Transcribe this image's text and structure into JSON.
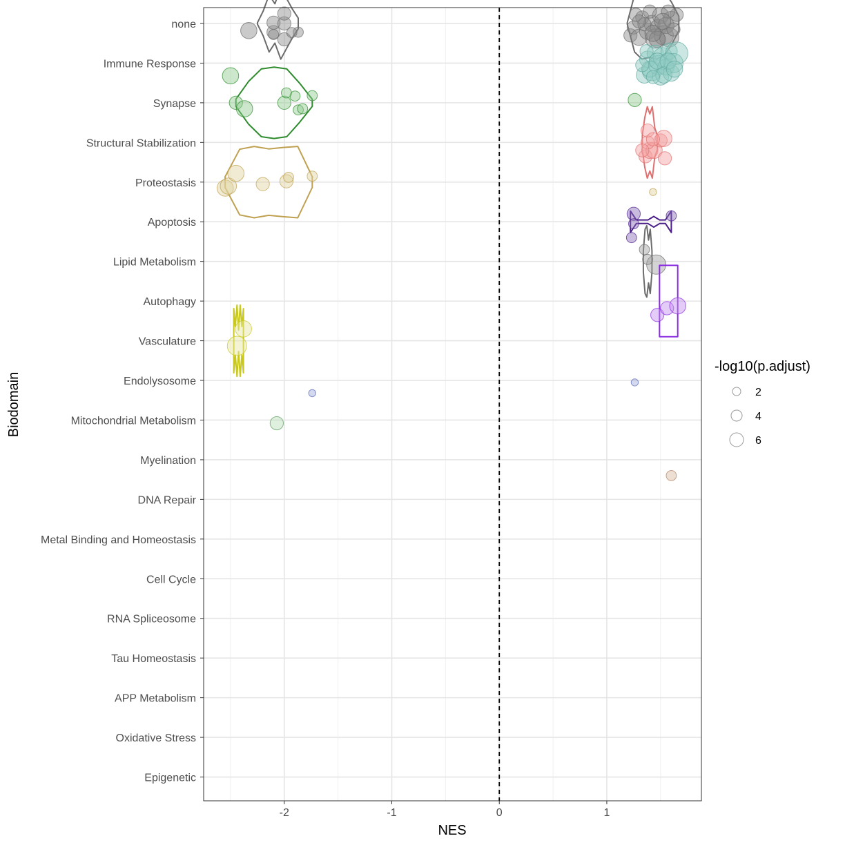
{
  "chart_data": {
    "type": "violin",
    "xlabel": "NES",
    "ylabel": "Biodomain",
    "xlim": [
      -2.75,
      1.88
    ],
    "xticks": [
      -2,
      -1,
      0,
      1
    ],
    "xtick_labels": [
      "-2",
      "-1",
      "0",
      "1"
    ],
    "reference_line_x": 0,
    "grid": true,
    "legend": {
      "title": "-log10(p.adjust)",
      "position": "right",
      "sizes": [
        2,
        4,
        6
      ],
      "labels": [
        "2",
        "4",
        "6"
      ]
    },
    "categories": [
      "none",
      "Immune Response",
      "Synapse",
      "Structural Stabilization",
      "Proteostasis",
      "Apoptosis",
      "Lipid Metabolism",
      "Autophagy",
      "Vasculature",
      "Endolysosome",
      "Mitochondrial Metabolism",
      "Myelination",
      "DNA Repair",
      "Metal Binding and Homeostasis",
      "Cell Cycle",
      "RNA Spliceosome",
      "Tau Homeostasis",
      "APP Metabolism",
      "Oxidative Stress",
      "Epigenetic"
    ],
    "groups": [
      {
        "category": "none",
        "color": "#6b6b6b",
        "fill": "#8a8a8a",
        "violins": [
          {
            "min": -2.25,
            "max": -1.87,
            "widths": [
              0.02,
              0.35,
              0.8,
              0.55,
              1.0,
              0.7,
              0.4,
              0.15
            ]
          },
          {
            "min": 1.19,
            "max": 1.67,
            "widths": [
              0.02,
              0.8,
              1.0,
              0.95,
              1.0,
              0.9,
              0.6,
              0.2
            ]
          }
        ],
        "points": [
          [
            -2.33,
            0.18,
            4
          ],
          [
            -2.1,
            0.22,
            3
          ],
          [
            -2.0,
            0.4,
            3
          ],
          [
            -1.87,
            0.22,
            2
          ],
          [
            -1.93,
            0.23,
            2
          ],
          [
            -2.1,
            -0.02,
            3
          ],
          [
            -2.0,
            0.0,
            3
          ],
          [
            -2.0,
            -0.25,
            3
          ],
          [
            -2.1,
            0.28,
            2
          ],
          [
            1.22,
            0.3,
            3
          ],
          [
            1.25,
            0.1,
            3
          ],
          [
            1.3,
            0.35,
            4
          ],
          [
            1.33,
            -0.15,
            3
          ],
          [
            1.38,
            0.2,
            4
          ],
          [
            1.42,
            0.0,
            4
          ],
          [
            1.45,
            0.38,
            5
          ],
          [
            1.48,
            0.1,
            4
          ],
          [
            1.5,
            -0.2,
            4
          ],
          [
            1.53,
            0.3,
            5
          ],
          [
            1.55,
            0.05,
            4
          ],
          [
            1.58,
            0.35,
            5
          ],
          [
            1.6,
            -0.1,
            4
          ],
          [
            1.62,
            0.15,
            3
          ],
          [
            1.65,
            -0.22,
            3
          ],
          [
            1.27,
            -0.22,
            3
          ],
          [
            1.35,
            0.02,
            3
          ],
          [
            1.4,
            -0.3,
            3
          ],
          [
            1.47,
            0.4,
            4
          ],
          [
            1.57,
            -0.3,
            3
          ],
          [
            1.3,
            -0.05,
            3
          ],
          [
            1.43,
            0.25,
            4
          ],
          [
            1.52,
            -0.05,
            4
          ]
        ]
      },
      {
        "category": "Immune Response",
        "color": "#5fa8a0",
        "fill": "#8ec9c2",
        "violins": [],
        "points": [
          [
            1.35,
            0.3,
            4
          ],
          [
            1.38,
            -0.1,
            4
          ],
          [
            1.42,
            0.2,
            5
          ],
          [
            1.45,
            -0.25,
            4
          ],
          [
            1.48,
            0.05,
            5
          ],
          [
            1.5,
            0.35,
            4
          ],
          [
            1.52,
            -0.15,
            5
          ],
          [
            1.55,
            0.1,
            4
          ],
          [
            1.58,
            -0.3,
            4
          ],
          [
            1.6,
            0.25,
            4
          ],
          [
            1.62,
            0.0,
            5
          ],
          [
            1.65,
            -0.25,
            6
          ],
          [
            1.4,
            0.15,
            4
          ],
          [
            1.47,
            -0.05,
            4
          ],
          [
            1.53,
            0.3,
            4
          ],
          [
            1.37,
            -0.3,
            3
          ],
          [
            1.43,
            0.35,
            3
          ],
          [
            1.57,
            -0.05,
            4
          ],
          [
            1.33,
            0.05,
            3
          ],
          [
            1.63,
            0.15,
            4
          ]
        ]
      },
      {
        "category": "Synapse",
        "color": "#2e8b2e",
        "fill": "#8fc98f",
        "violins": [
          {
            "min": -2.45,
            "max": -1.74,
            "widths": [
              0.1,
              0.6,
              0.95,
              1.0,
              0.95,
              0.55,
              0.1
            ]
          }
        ],
        "points": [
          [
            -2.45,
            0.0,
            3
          ],
          [
            -2.37,
            0.15,
            4
          ],
          [
            -2.0,
            0.0,
            3
          ],
          [
            -1.87,
            0.18,
            2
          ],
          [
            -1.83,
            0.15,
            2
          ],
          [
            -1.9,
            -0.17,
            2
          ],
          [
            -1.98,
            -0.25,
            2
          ],
          [
            -1.74,
            -0.18,
            2
          ],
          [
            -2.5,
            -0.68,
            4
          ],
          [
            1.26,
            -0.07,
            3
          ]
        ]
      },
      {
        "category": "Structural Stabilization",
        "color": "#e07070",
        "fill": "#f5a0a0",
        "violins": [
          {
            "min": 1.33,
            "max": 1.47,
            "widths": [
              0.2,
              0.7,
              1.0,
              0.8,
              1.0,
              0.4,
              0.2
            ]
          }
        ],
        "points": [
          [
            1.36,
            0.35,
            3
          ],
          [
            1.4,
            0.2,
            4
          ],
          [
            1.44,
            0.2,
            4
          ],
          [
            1.38,
            0.0,
            3
          ],
          [
            1.5,
            -0.05,
            3
          ],
          [
            1.54,
            0.4,
            3
          ],
          [
            1.53,
            -0.1,
            4
          ],
          [
            1.38,
            -0.3,
            3
          ],
          [
            1.43,
            -0.08,
            3
          ],
          [
            1.33,
            0.2,
            3
          ]
        ]
      },
      {
        "category": "Proteostasis",
        "color": "#bfa050",
        "fill": "#e0d3a0",
        "violins": [
          {
            "min": -2.55,
            "max": -1.74,
            "widths": [
              0.15,
              0.92,
              1.0,
              0.93,
              0.97,
              1.0,
              0.15
            ]
          }
        ],
        "points": [
          [
            -2.55,
            0.15,
            4
          ],
          [
            -2.52,
            0.1,
            4
          ],
          [
            -2.45,
            -0.22,
            4
          ],
          [
            -2.2,
            0.05,
            3
          ],
          [
            -1.98,
            -0.02,
            3
          ],
          [
            -1.96,
            -0.12,
            2
          ],
          [
            -1.74,
            -0.15,
            2
          ],
          [
            1.43,
            0.25,
            1
          ]
        ]
      },
      {
        "category": "Apoptosis",
        "color": "#4b1f8a",
        "fill": "#8a6ab5",
        "violins": [
          {
            "min": 1.22,
            "max": 1.6,
            "widths": [
              0.3,
              0.05,
              0.05,
              0.05,
              0.15,
              0.05,
              0.05,
              0.3
            ]
          }
        ],
        "points": [
          [
            1.23,
            0.4,
            2
          ],
          [
            1.25,
            -0.2,
            3
          ],
          [
            1.6,
            -0.15,
            2
          ],
          [
            1.25,
            0.05,
            2
          ]
        ]
      },
      {
        "category": "Lipid Metabolism",
        "color": "#6b6b6b",
        "fill": "#a0a0a0",
        "violins": [
          {
            "min": 1.34,
            "max": 1.42,
            "widths": [
              0.3,
              0.9,
              1.0,
              0.6,
              0.9,
              0.3
            ]
          }
        ],
        "points": [
          [
            1.46,
            0.08,
            5
          ],
          [
            1.38,
            -0.05,
            2
          ],
          [
            1.35,
            -0.3,
            2
          ]
        ]
      },
      {
        "category": "Autophagy",
        "color": "#8b2be2",
        "fill": "#c48ef0",
        "violins": [
          {
            "min": 1.49,
            "max": 1.66,
            "widths": [
              1.0,
              1.0,
              1.0,
              1.0,
              1.0
            ]
          }
        ],
        "points": [
          [
            1.47,
            0.35,
            3
          ],
          [
            1.56,
            0.18,
            3
          ],
          [
            1.66,
            0.12,
            4
          ]
        ]
      },
      {
        "category": "Vasculature",
        "color": "#c8c820",
        "fill": "#e6e6a0",
        "violins": [
          {
            "min": -2.47,
            "max": -2.38,
            "widths": [
              0.9,
              0.4,
              1.0,
              0.3,
              1.0,
              0.4,
              0.9
            ]
          }
        ],
        "points": [
          [
            -2.44,
            0.13,
            5
          ],
          [
            -2.38,
            -0.3,
            4
          ]
        ]
      },
      {
        "category": "Endolysosome",
        "color": "#5a6ab5",
        "fill": "#a0aadd",
        "violins": [],
        "points": [
          [
            -1.74,
            0.32,
            1
          ],
          [
            1.26,
            0.05,
            1
          ]
        ]
      },
      {
        "category": "Mitochondrial Metabolism",
        "color": "#5a9a5a",
        "fill": "#b8ddb8",
        "violins": [],
        "points": [
          [
            -2.07,
            0.08,
            3
          ]
        ]
      },
      {
        "category": "Myelination",
        "color": "#b08060",
        "fill": "#d8b8a0",
        "violins": [],
        "points": [
          [
            1.6,
            0.4,
            2
          ]
        ]
      }
    ]
  }
}
